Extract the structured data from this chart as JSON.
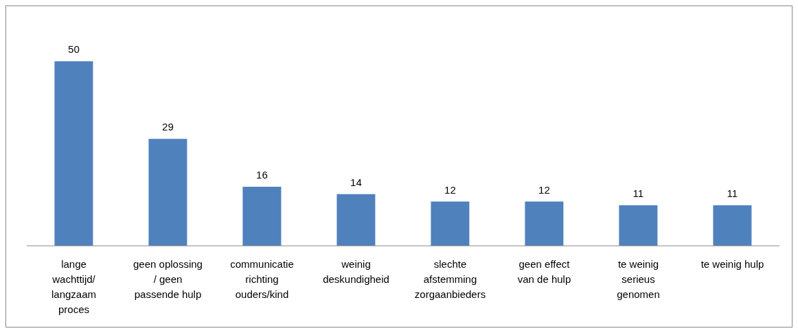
{
  "chart_data": {
    "type": "bar",
    "categories": [
      "lange wachttijd/ langzaam proces",
      "geen oplossing / geen passende hulp",
      "communicatie richting ouders/kind",
      "weinig deskundigheid",
      "slechte afstemming zorgaanbieders",
      "geen effect van de hulp",
      "te weinig serieus genomen",
      "te weinig hulp"
    ],
    "values": [
      50,
      29,
      16,
      14,
      12,
      12,
      11,
      11
    ],
    "color": "#4f81bd",
    "data_labels": true
  }
}
